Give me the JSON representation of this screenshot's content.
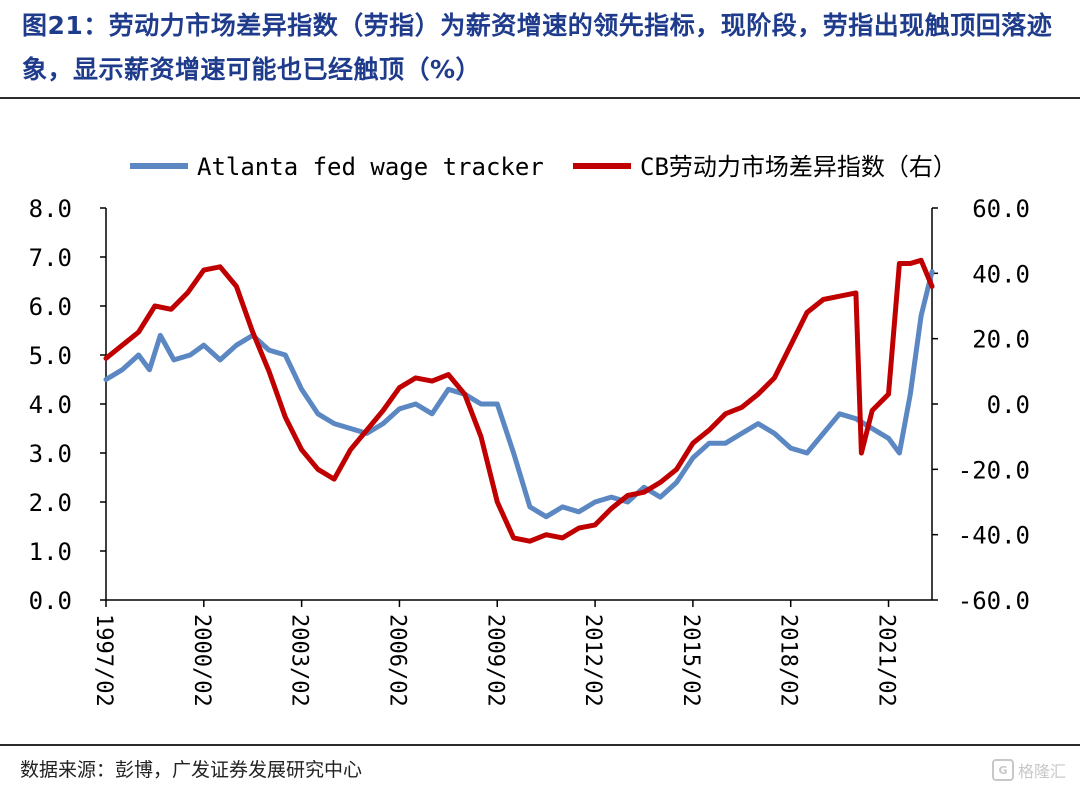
{
  "header": {
    "title": "图21：劳动力市场差异指数（劳指）为薪资增速的领先指标，现阶段，劳指出现触顶回落迹象，显示薪资增速可能也已经触顶（%）"
  },
  "footer": {
    "source": "数据来源：彭博，广发证券发展研究中心",
    "watermark": "格隆汇"
  },
  "chart_data": {
    "type": "line",
    "x_range": [
      "1997/02",
      "2022/06"
    ],
    "x_ticks": [
      "1997/02",
      "2000/02",
      "2003/02",
      "2006/02",
      "2009/02",
      "2012/02",
      "2015/02",
      "2018/02",
      "2021/02"
    ],
    "y_left": {
      "ticks": [
        "0.0",
        "1.0",
        "2.0",
        "3.0",
        "4.0",
        "5.0",
        "6.0",
        "7.0",
        "8.0"
      ],
      "range": [
        0,
        8
      ]
    },
    "y_right": {
      "ticks": [
        "-60.0",
        "-40.0",
        "-20.0",
        "0.0",
        "20.0",
        "40.0",
        "60.0"
      ],
      "range": [
        -60,
        60
      ]
    },
    "legend_position": "top",
    "series": [
      {
        "name": "Atlanta fed wage tracker",
        "axis": "left",
        "color": "#5b87c2",
        "points": [
          [
            "1997/02",
            4.5
          ],
          [
            "1997/08",
            4.7
          ],
          [
            "1998/02",
            5.0
          ],
          [
            "1998/06",
            4.7
          ],
          [
            "1998/10",
            5.4
          ],
          [
            "1999/03",
            4.9
          ],
          [
            "1999/09",
            5.0
          ],
          [
            "2000/02",
            5.2
          ],
          [
            "2000/08",
            4.9
          ],
          [
            "2001/02",
            5.2
          ],
          [
            "2001/08",
            5.4
          ],
          [
            "2002/02",
            5.1
          ],
          [
            "2002/08",
            5.0
          ],
          [
            "2003/02",
            4.3
          ],
          [
            "2003/08",
            3.8
          ],
          [
            "2004/02",
            3.6
          ],
          [
            "2004/08",
            3.5
          ],
          [
            "2005/02",
            3.4
          ],
          [
            "2005/08",
            3.6
          ],
          [
            "2006/02",
            3.9
          ],
          [
            "2006/08",
            4.0
          ],
          [
            "2007/02",
            3.8
          ],
          [
            "2007/08",
            4.3
          ],
          [
            "2008/02",
            4.2
          ],
          [
            "2008/08",
            4.0
          ],
          [
            "2009/02",
            4.0
          ],
          [
            "2009/08",
            3.0
          ],
          [
            "2010/02",
            1.9
          ],
          [
            "2010/08",
            1.7
          ],
          [
            "2011/02",
            1.9
          ],
          [
            "2011/08",
            1.8
          ],
          [
            "2012/02",
            2.0
          ],
          [
            "2012/08",
            2.1
          ],
          [
            "2013/02",
            2.0
          ],
          [
            "2013/08",
            2.3
          ],
          [
            "2014/02",
            2.1
          ],
          [
            "2014/08",
            2.4
          ],
          [
            "2015/02",
            2.9
          ],
          [
            "2015/08",
            3.2
          ],
          [
            "2016/02",
            3.2
          ],
          [
            "2016/08",
            3.4
          ],
          [
            "2017/02",
            3.6
          ],
          [
            "2017/08",
            3.4
          ],
          [
            "2018/02",
            3.1
          ],
          [
            "2018/08",
            3.0
          ],
          [
            "2019/02",
            3.4
          ],
          [
            "2019/08",
            3.8
          ],
          [
            "2020/02",
            3.7
          ],
          [
            "2020/08",
            3.5
          ],
          [
            "2021/02",
            3.3
          ],
          [
            "2021/06",
            3.0
          ],
          [
            "2021/10",
            4.2
          ],
          [
            "2022/02",
            5.8
          ],
          [
            "2022/06",
            6.7
          ]
        ]
      },
      {
        "name": "CB劳动力市场差异指数（右）",
        "axis": "right",
        "color": "#c00000",
        "points": [
          [
            "1997/02",
            14
          ],
          [
            "1997/08",
            18
          ],
          [
            "1998/02",
            22
          ],
          [
            "1998/08",
            30
          ],
          [
            "1999/02",
            29
          ],
          [
            "1999/08",
            34
          ],
          [
            "2000/02",
            41
          ],
          [
            "2000/08",
            42
          ],
          [
            "2001/02",
            36
          ],
          [
            "2001/08",
            22
          ],
          [
            "2002/02",
            10
          ],
          [
            "2002/08",
            -4
          ],
          [
            "2003/02",
            -14
          ],
          [
            "2003/08",
            -20
          ],
          [
            "2004/02",
            -23
          ],
          [
            "2004/08",
            -14
          ],
          [
            "2005/02",
            -8
          ],
          [
            "2005/08",
            -2
          ],
          [
            "2006/02",
            5
          ],
          [
            "2006/08",
            8
          ],
          [
            "2007/02",
            7
          ],
          [
            "2007/08",
            9
          ],
          [
            "2008/02",
            3
          ],
          [
            "2008/08",
            -10
          ],
          [
            "2009/02",
            -30
          ],
          [
            "2009/08",
            -41
          ],
          [
            "2010/02",
            -42
          ],
          [
            "2010/08",
            -40
          ],
          [
            "2011/02",
            -41
          ],
          [
            "2011/08",
            -38
          ],
          [
            "2012/02",
            -37
          ],
          [
            "2012/08",
            -32
          ],
          [
            "2013/02",
            -28
          ],
          [
            "2013/08",
            -27
          ],
          [
            "2014/02",
            -24
          ],
          [
            "2014/08",
            -20
          ],
          [
            "2015/02",
            -12
          ],
          [
            "2015/08",
            -8
          ],
          [
            "2016/02",
            -3
          ],
          [
            "2016/08",
            -1
          ],
          [
            "2017/02",
            3
          ],
          [
            "2017/08",
            8
          ],
          [
            "2018/02",
            18
          ],
          [
            "2018/08",
            28
          ],
          [
            "2019/02",
            32
          ],
          [
            "2019/08",
            33
          ],
          [
            "2020/02",
            34
          ],
          [
            "2020/04",
            -15
          ],
          [
            "2020/08",
            -2
          ],
          [
            "2021/02",
            3
          ],
          [
            "2021/06",
            43
          ],
          [
            "2021/10",
            43
          ],
          [
            "2022/02",
            44
          ],
          [
            "2022/06",
            36
          ]
        ]
      }
    ]
  }
}
